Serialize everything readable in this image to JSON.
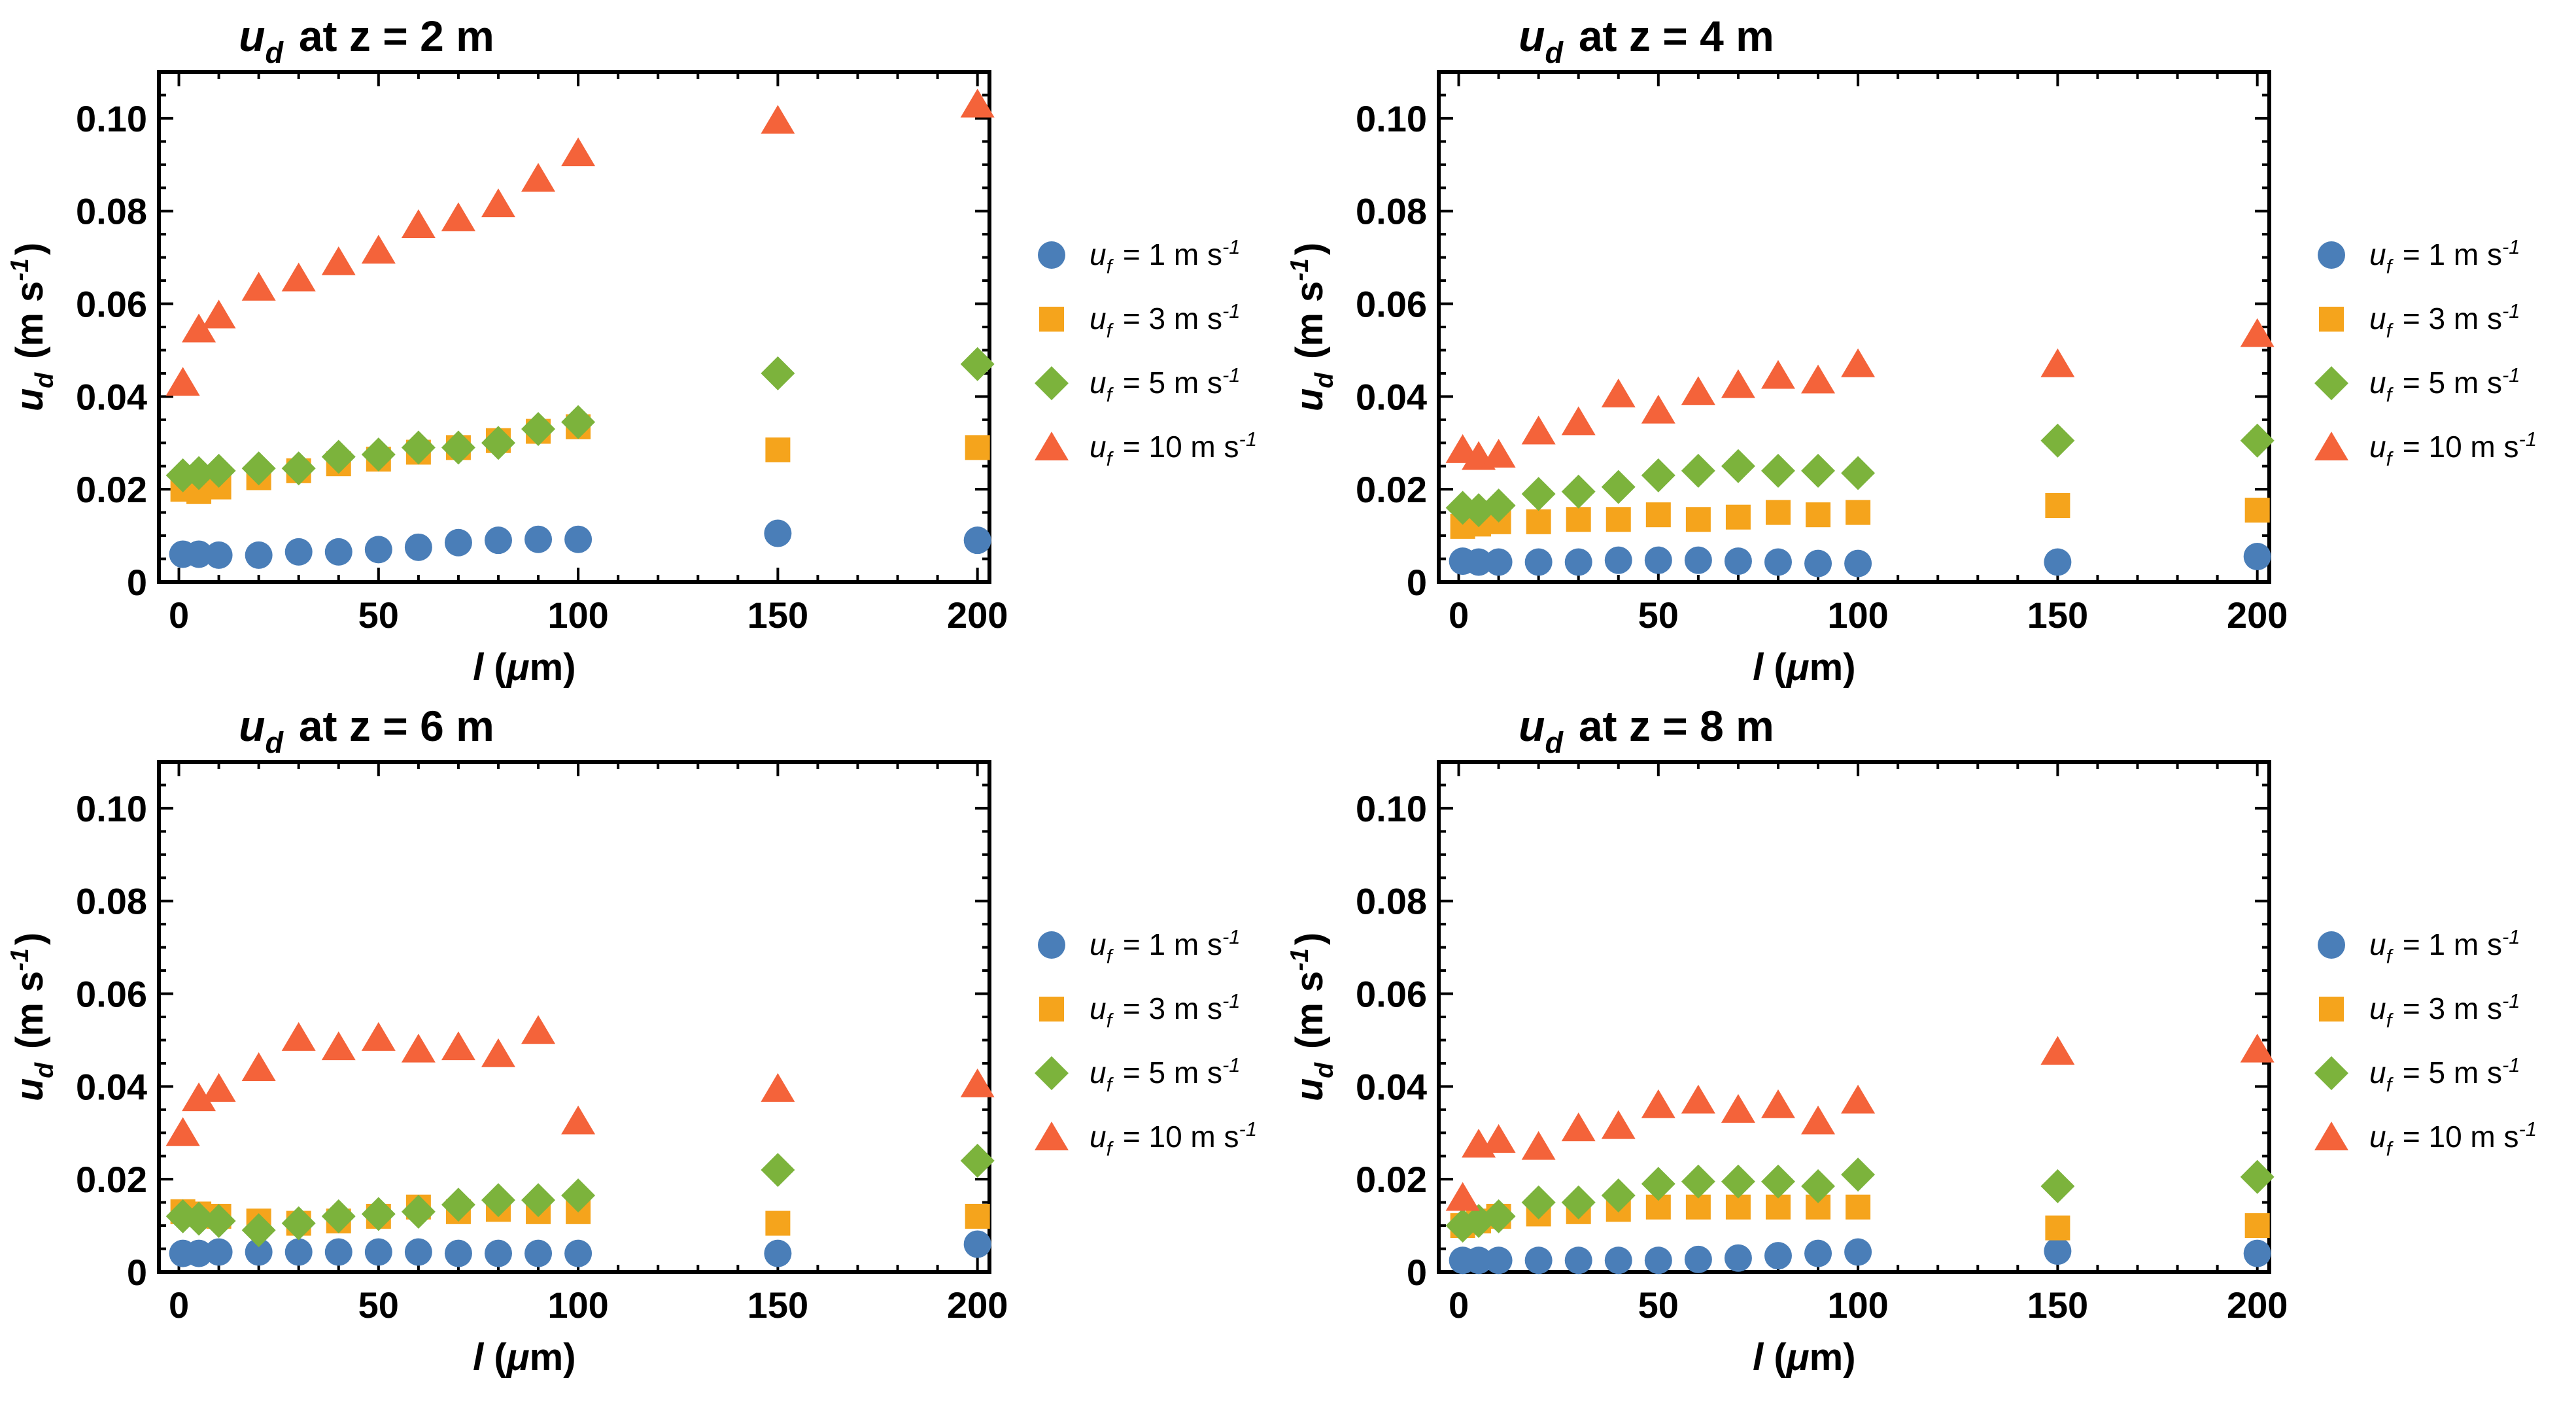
{
  "colors": {
    "circle": "#4a7eb8",
    "square": "#f5a41c",
    "diamond": "#7cb33c",
    "triangle": "#f4633a"
  },
  "chart_data": [
    {
      "type": "scatter",
      "title": "u_d at z = 2 m",
      "xlabel": "l (μm)",
      "ylabel": "u_d (m s^-1)",
      "xlim": [
        -5,
        203
      ],
      "ylim": [
        0,
        0.11
      ],
      "xticks": [
        "0",
        "50",
        "100",
        "150",
        "200"
      ],
      "yticks": [
        "0",
        "0.02",
        "0.04",
        "0.06",
        "0.08",
        "0.10"
      ],
      "x": [
        1,
        5,
        10,
        20,
        30,
        40,
        50,
        60,
        70,
        80,
        90,
        100,
        150,
        200
      ],
      "legend_position": "right",
      "series": [
        {
          "name": "u_f = 1 m s^-1",
          "marker": "circle",
          "values": [
            0.006,
            0.006,
            0.0058,
            0.0058,
            0.0065,
            0.0065,
            0.007,
            0.0075,
            0.0085,
            0.009,
            0.0092,
            0.0092,
            0.0105,
            0.009
          ]
        },
        {
          "name": "u_f = 3 m s^-1",
          "marker": "square",
          "values": [
            0.02,
            0.0195,
            0.0205,
            0.0225,
            0.024,
            0.0255,
            0.0265,
            0.028,
            0.029,
            0.0305,
            0.0325,
            0.0335,
            0.0285,
            0.029
          ]
        },
        {
          "name": "u_f = 5 m s^-1",
          "marker": "diamond",
          "values": [
            0.023,
            0.0235,
            0.024,
            0.0245,
            0.0245,
            0.027,
            0.0275,
            0.029,
            0.029,
            0.03,
            0.033,
            0.0345,
            0.045,
            0.047
          ]
        },
        {
          "name": "u_f = 10 m s^-1",
          "marker": "triangle",
          "values": [
            0.043,
            0.0545,
            0.0575,
            0.0635,
            0.0655,
            0.069,
            0.0715,
            0.077,
            0.0785,
            0.0815,
            0.087,
            0.0925,
            0.0995,
            0.103
          ]
        }
      ]
    },
    {
      "type": "scatter",
      "title": "u_d at z = 4 m",
      "xlabel": "l (μm)",
      "ylabel": "u_d (m s^-1)",
      "xlim": [
        -5,
        203
      ],
      "ylim": [
        0,
        0.11
      ],
      "xticks": [
        "0",
        "50",
        "100",
        "150",
        "200"
      ],
      "yticks": [
        "0",
        "0.02",
        "0.04",
        "0.06",
        "0.08",
        "0.10"
      ],
      "x": [
        1,
        5,
        10,
        20,
        30,
        40,
        50,
        60,
        70,
        80,
        90,
        100,
        150,
        200
      ],
      "legend_position": "right",
      "series": [
        {
          "name": "u_f = 1 m s^-1",
          "marker": "circle",
          "values": [
            0.0045,
            0.0043,
            0.0043,
            0.0043,
            0.0043,
            0.0047,
            0.0047,
            0.0047,
            0.0045,
            0.0043,
            0.004,
            0.004,
            0.0043,
            0.0055
          ]
        },
        {
          "name": "u_f = 3 m s^-1",
          "marker": "square",
          "values": [
            0.012,
            0.0125,
            0.013,
            0.013,
            0.0135,
            0.0135,
            0.0145,
            0.0135,
            0.014,
            0.015,
            0.0145,
            0.015,
            0.0165,
            0.0155
          ]
        },
        {
          "name": "u_f = 5 m s^-1",
          "marker": "diamond",
          "values": [
            0.016,
            0.0155,
            0.0165,
            0.019,
            0.0195,
            0.0205,
            0.023,
            0.024,
            0.025,
            0.024,
            0.024,
            0.0235,
            0.0305,
            0.0305
          ]
        },
        {
          "name": "u_f = 10 m s^-1",
          "marker": "triangle",
          "values": [
            0.0285,
            0.027,
            0.0275,
            0.0325,
            0.0345,
            0.0405,
            0.037,
            0.041,
            0.0425,
            0.0445,
            0.0435,
            0.047,
            0.047,
            0.0535
          ]
        }
      ]
    },
    {
      "type": "scatter",
      "title": "u_d at z = 6 m",
      "xlabel": "l (μm)",
      "ylabel": "u_d (m s^-1)",
      "xlim": [
        -5,
        203
      ],
      "ylim": [
        0,
        0.11
      ],
      "xticks": [
        "0",
        "50",
        "100",
        "150",
        "200"
      ],
      "yticks": [
        "0",
        "0.02",
        "0.04",
        "0.06",
        "0.08",
        "0.10"
      ],
      "x": [
        1,
        5,
        10,
        20,
        30,
        40,
        50,
        60,
        70,
        80,
        90,
        100,
        150,
        200
      ],
      "legend_position": "right",
      "series": [
        {
          "name": "u_f = 1 m s^-1",
          "marker": "circle",
          "values": [
            0.004,
            0.004,
            0.0043,
            0.0043,
            0.0043,
            0.0043,
            0.0043,
            0.0043,
            0.004,
            0.004,
            0.004,
            0.004,
            0.004,
            0.006
          ]
        },
        {
          "name": "u_f = 3 m s^-1",
          "marker": "square",
          "values": [
            0.013,
            0.0125,
            0.012,
            0.011,
            0.0105,
            0.011,
            0.012,
            0.014,
            0.013,
            0.0135,
            0.013,
            0.013,
            0.0105,
            0.012
          ]
        },
        {
          "name": "u_f = 5 m s^-1",
          "marker": "diamond",
          "values": [
            0.012,
            0.0115,
            0.011,
            0.009,
            0.0105,
            0.012,
            0.0125,
            0.013,
            0.0145,
            0.0155,
            0.0155,
            0.0165,
            0.022,
            0.024
          ]
        },
        {
          "name": "u_f = 10 m s^-1",
          "marker": "triangle",
          "values": [
            0.03,
            0.0375,
            0.0395,
            0.044,
            0.0505,
            0.0485,
            0.0505,
            0.048,
            0.0485,
            0.047,
            0.052,
            0.0325,
            0.0395,
            0.0405
          ]
        }
      ]
    },
    {
      "type": "scatter",
      "title": "u_d at z = 8 m",
      "xlabel": "l (μm)",
      "ylabel": "u_d (m s^-1)",
      "xlim": [
        -5,
        203
      ],
      "ylim": [
        0,
        0.11
      ],
      "xticks": [
        "0",
        "50",
        "100",
        "150",
        "200"
      ],
      "yticks": [
        "0",
        "0.02",
        "0.04",
        "0.06",
        "0.08",
        "0.10"
      ],
      "x": [
        1,
        5,
        10,
        20,
        30,
        40,
        50,
        60,
        70,
        80,
        90,
        100,
        150,
        200
      ],
      "legend_position": "right",
      "series": [
        {
          "name": "u_f = 1 m s^-1",
          "marker": "circle",
          "values": [
            0.0025,
            0.0025,
            0.0025,
            0.0025,
            0.0025,
            0.0025,
            0.0025,
            0.0027,
            0.003,
            0.0035,
            0.004,
            0.0043,
            0.0045,
            0.004
          ]
        },
        {
          "name": "u_f = 3 m s^-1",
          "marker": "square",
          "values": [
            0.01,
            0.011,
            0.012,
            0.0125,
            0.013,
            0.0135,
            0.014,
            0.014,
            0.014,
            0.014,
            0.014,
            0.014,
            0.0095,
            0.01
          ]
        },
        {
          "name": "u_f = 5 m s^-1",
          "marker": "diamond",
          "values": [
            0.01,
            0.011,
            0.012,
            0.015,
            0.015,
            0.0165,
            0.019,
            0.0195,
            0.0195,
            0.0195,
            0.0185,
            0.021,
            0.0185,
            0.0205
          ]
        },
        {
          "name": "u_f = 10 m s^-1",
          "marker": "triangle",
          "values": [
            0.016,
            0.0275,
            0.0285,
            0.027,
            0.031,
            0.0315,
            0.036,
            0.037,
            0.035,
            0.036,
            0.0325,
            0.037,
            0.0475,
            0.048
          ]
        }
      ]
    }
  ]
}
